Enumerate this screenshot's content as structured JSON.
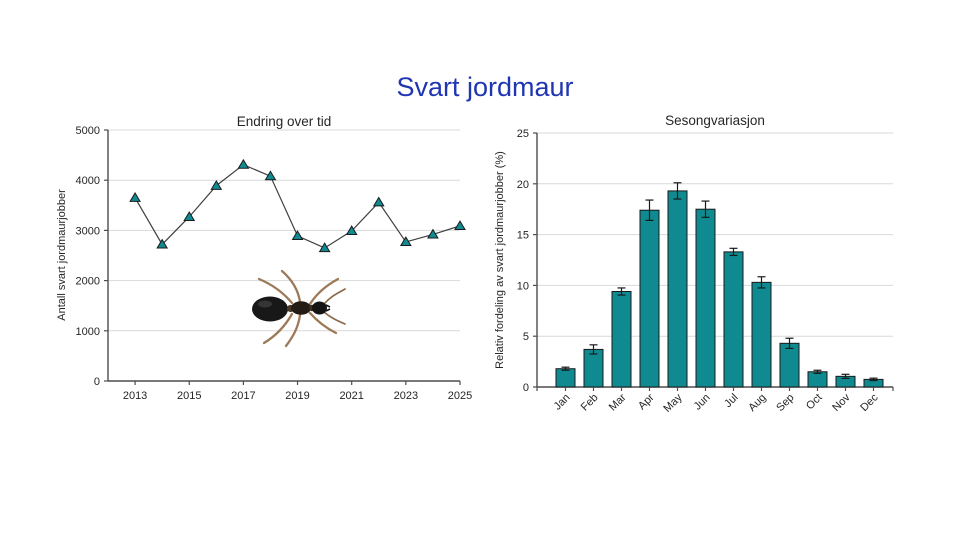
{
  "page": {
    "title": "Svart jordmaur",
    "title_color": "#1F35B2",
    "background": "#ffffff"
  },
  "colors": {
    "teal": "#0F8A91",
    "edge": "#1a1a1a",
    "line": "#404040",
    "grid": "#d9d9d9",
    "axis": "#4d4d4d",
    "text": "#262626"
  },
  "decorations": {
    "ant_image": "black-garden-ant-photo"
  },
  "chart_data": [
    {
      "id": "line-chart",
      "type": "line",
      "title": "Endring over tid",
      "xlabel": "",
      "ylabel": "Antall svart jordmaurjobber",
      "x": [
        2013,
        2014,
        2015,
        2016,
        2017,
        2018,
        2019,
        2020,
        2021,
        2022,
        2023,
        2024,
        2025
      ],
      "values": [
        3650,
        2720,
        3270,
        3890,
        4310,
        4080,
        2890,
        2650,
        2990,
        3560,
        2770,
        2920,
        3090
      ],
      "xticks": [
        2013,
        2015,
        2017,
        2019,
        2021,
        2023,
        2025
      ],
      "yticks": [
        0,
        1000,
        2000,
        3000,
        4000,
        5000
      ],
      "xlim": [
        2012,
        2025
      ],
      "ylim": [
        0,
        5000
      ],
      "grid": true,
      "legend": "none",
      "marker": "triangle-up",
      "marker_color": "#0F8A91",
      "line_color": "#404040"
    },
    {
      "id": "bar-chart",
      "type": "bar",
      "title": "Sesongvariasjon",
      "xlabel": "",
      "ylabel": "Relativ fordeling av svart jordmaurjobber (%)",
      "categories": [
        "Jan",
        "Feb",
        "Mar",
        "Apr",
        "May",
        "Jun",
        "Jul",
        "Aug",
        "Sep",
        "Oct",
        "Nov",
        "Dec"
      ],
      "values": [
        1.8,
        3.7,
        9.4,
        17.4,
        19.3,
        17.5,
        13.3,
        10.3,
        4.3,
        1.5,
        1.05,
        0.75
      ],
      "errors": [
        0.15,
        0.45,
        0.35,
        1.0,
        0.8,
        0.8,
        0.35,
        0.55,
        0.5,
        0.15,
        0.2,
        0.12
      ],
      "yticks": [
        0,
        5,
        10,
        15,
        20,
        25
      ],
      "ylim": [
        0,
        25
      ],
      "grid": true,
      "legend": "none",
      "bar_color": "#0F8A91",
      "error_color": "#1a1a1a"
    }
  ]
}
